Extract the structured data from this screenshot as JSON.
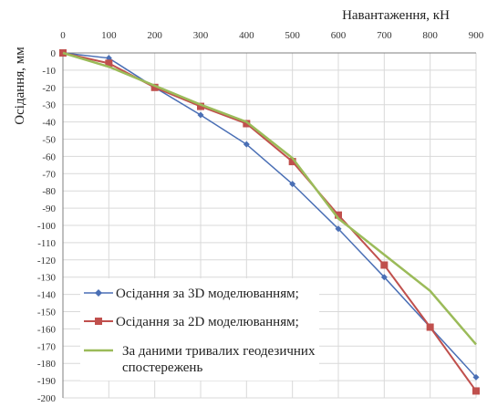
{
  "chart_data": {
    "type": "line",
    "x_title": "Навантаження, кН",
    "y_title": "Осідання, мм",
    "x_ticks": [
      0,
      100,
      200,
      300,
      400,
      500,
      600,
      700,
      800,
      900
    ],
    "y_ticks": [
      0,
      -10,
      -20,
      -30,
      -40,
      -50,
      -60,
      -70,
      -80,
      -90,
      -100,
      -110,
      -120,
      -130,
      -140,
      -150,
      -160,
      -170,
      -180,
      -190,
      -200
    ],
    "xlim": [
      0,
      900
    ],
    "ylim": [
      -200,
      0
    ],
    "x_axis_position": "top",
    "grid": true,
    "legend_position": "bottom-left",
    "x": [
      0,
      100,
      200,
      300,
      400,
      500,
      600,
      700,
      800,
      900
    ],
    "series": [
      {
        "name": "Осідання за 3D моделюванням;",
        "color": "#4a6fb5",
        "marker": "diamond",
        "values": [
          0,
          -3,
          -20,
          -36,
          -53,
          -76,
          -102,
          -130,
          -159,
          -188
        ]
      },
      {
        "name": "Осідання за 2D моделюванням;",
        "color": "#c0504d",
        "marker": "square",
        "values": [
          0,
          -6,
          -20,
          -31,
          -41,
          -63,
          -94,
          -123,
          -159,
          -196
        ]
      },
      {
        "name": "За даними тривалих геодезичних спостережень",
        "color": "#9bbb59",
        "marker": "none",
        "values": [
          0,
          -8,
          -19,
          -30,
          -40,
          -61,
          -96,
          -117,
          -138,
          -169
        ]
      }
    ]
  }
}
